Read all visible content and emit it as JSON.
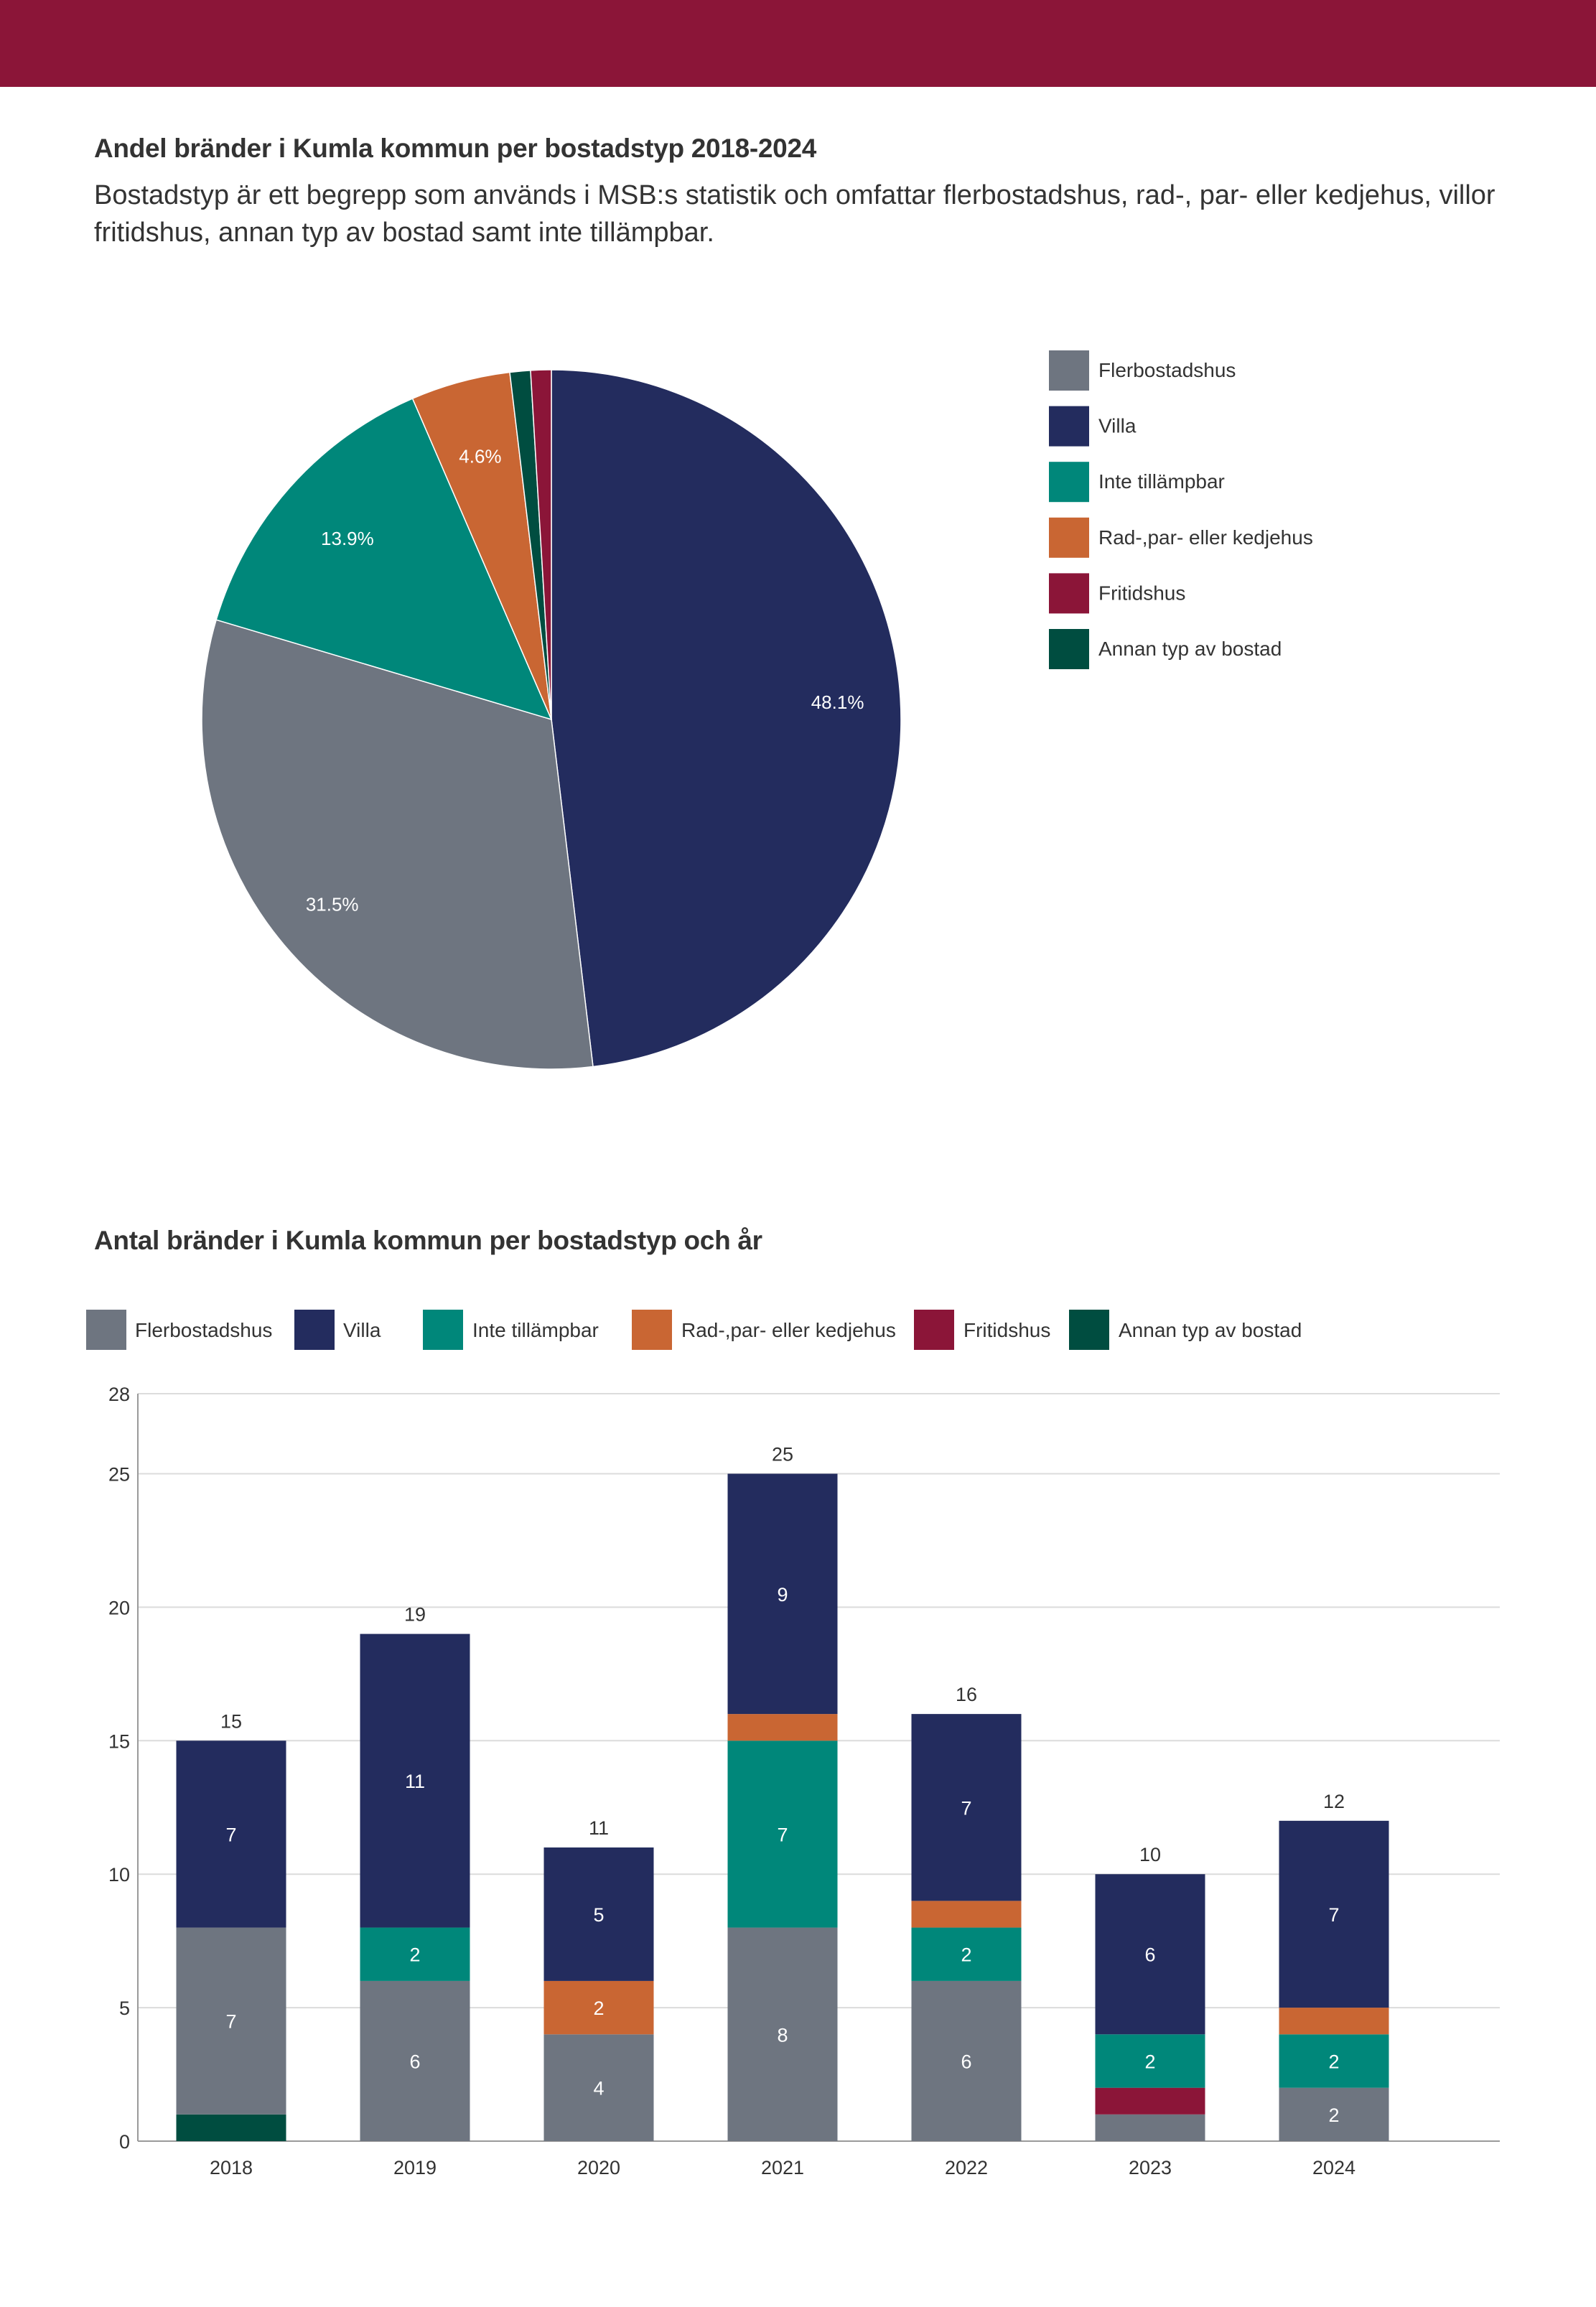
{
  "header": {
    "pie_title": "Andel bränder i Kumla kommun per bostadstyp 2018-2024",
    "intro": "Bostadstyp är ett begrepp som används i MSB:s statistik och omfattar flerbostadshus, rad-, par- eller kedjehus, villor fritidshus, annan typ av bostad samt inte tillämpbar.",
    "bar_title": "Antal bränder i Kumla kommun per bostadstyp och år",
    "brand_color": "#8b1538"
  },
  "chart_data": [
    {
      "type": "pie",
      "title": "Andel bränder i Kumla kommun per bostadstyp 2018-2024",
      "legend_position": "right",
      "legend": [
        {
          "name": "Flerbostadshus",
          "color": "#6e7580"
        },
        {
          "name": "Villa",
          "color": "#232c5e"
        },
        {
          "name": "Inte tillämpbar",
          "color": "#00877a"
        },
        {
          "name": "Rad-,par- eller kedjehus",
          "color": "#c96633"
        },
        {
          "name": "Fritidshus",
          "color": "#8b1538"
        },
        {
          "name": "Annan typ av bostad",
          "color": "#004d40"
        }
      ],
      "slices": [
        {
          "name": "Villa",
          "value": 48.1,
          "label": "48.1%",
          "color": "#232c5e"
        },
        {
          "name": "Flerbostadshus",
          "value": 31.5,
          "label": "31.5%",
          "color": "#6e7580"
        },
        {
          "name": "Inte tillämpbar",
          "value": 13.9,
          "label": "13.9%",
          "color": "#00877a"
        },
        {
          "name": "Rad-,par- eller kedjehus",
          "value": 4.6,
          "label": "4.6%",
          "color": "#c96633"
        },
        {
          "name": "Annan typ av bostad",
          "value": 0.95,
          "label": "",
          "color": "#004d40"
        },
        {
          "name": "Fritidshus",
          "value": 0.95,
          "label": "",
          "color": "#8b1538"
        }
      ]
    },
    {
      "type": "bar",
      "stacked": true,
      "title": "Antal bränder i Kumla kommun per bostadstyp och år",
      "legend_position": "top",
      "categories": [
        "2018",
        "2019",
        "2020",
        "2021",
        "2022",
        "2023",
        "2024"
      ],
      "ylim": [
        0,
        28
      ],
      "yticks": [
        0,
        5,
        10,
        15,
        20,
        25,
        28
      ],
      "grid": true,
      "stack_order": [
        "Annan typ av bostad",
        "Flerbostadshus",
        "Fritidshus",
        "Inte tillämpbar",
        "Rad-,par- eller kedjehus",
        "Villa"
      ],
      "legend": [
        {
          "name": "Flerbostadshus",
          "color": "#6e7580"
        },
        {
          "name": "Villa",
          "color": "#232c5e"
        },
        {
          "name": "Inte tillämpbar",
          "color": "#00877a"
        },
        {
          "name": "Rad-,par- eller kedjehus",
          "color": "#c96633"
        },
        {
          "name": "Fritidshus",
          "color": "#8b1538"
        },
        {
          "name": "Annan typ av bostad",
          "color": "#004d40"
        }
      ],
      "series": [
        {
          "name": "Annan typ av bostad",
          "color": "#004d40",
          "values": [
            1,
            0,
            0,
            0,
            0,
            0,
            0
          ],
          "labels": [
            "",
            "",
            "",
            "",
            "",
            "",
            ""
          ]
        },
        {
          "name": "Flerbostadshus",
          "color": "#6e7580",
          "values": [
            7,
            6,
            4,
            8,
            6,
            1,
            2
          ],
          "labels": [
            "7",
            "6",
            "4",
            "8",
            "6",
            "",
            "2"
          ]
        },
        {
          "name": "Fritidshus",
          "color": "#8b1538",
          "values": [
            0,
            0,
            0,
            0,
            0,
            1,
            0
          ],
          "labels": [
            "",
            "",
            "",
            "",
            "",
            "",
            ""
          ]
        },
        {
          "name": "Inte tillämpbar",
          "color": "#00877a",
          "values": [
            0,
            2,
            0,
            7,
            2,
            2,
            2
          ],
          "labels": [
            "",
            "2",
            "",
            "7",
            "2",
            "2",
            "2"
          ]
        },
        {
          "name": "Rad-,par- eller kedjehus",
          "color": "#c96633",
          "values": [
            0,
            0,
            2,
            1,
            1,
            0,
            1
          ],
          "labels": [
            "",
            "",
            "2",
            "",
            "",
            "",
            ""
          ]
        },
        {
          "name": "Villa",
          "color": "#232c5e",
          "values": [
            7,
            11,
            5,
            9,
            7,
            6,
            7
          ],
          "labels": [
            "7",
            "11",
            "5",
            "9",
            "7",
            "6",
            "7"
          ]
        }
      ],
      "totals": [
        15,
        19,
        11,
        25,
        16,
        10,
        12
      ]
    }
  ]
}
